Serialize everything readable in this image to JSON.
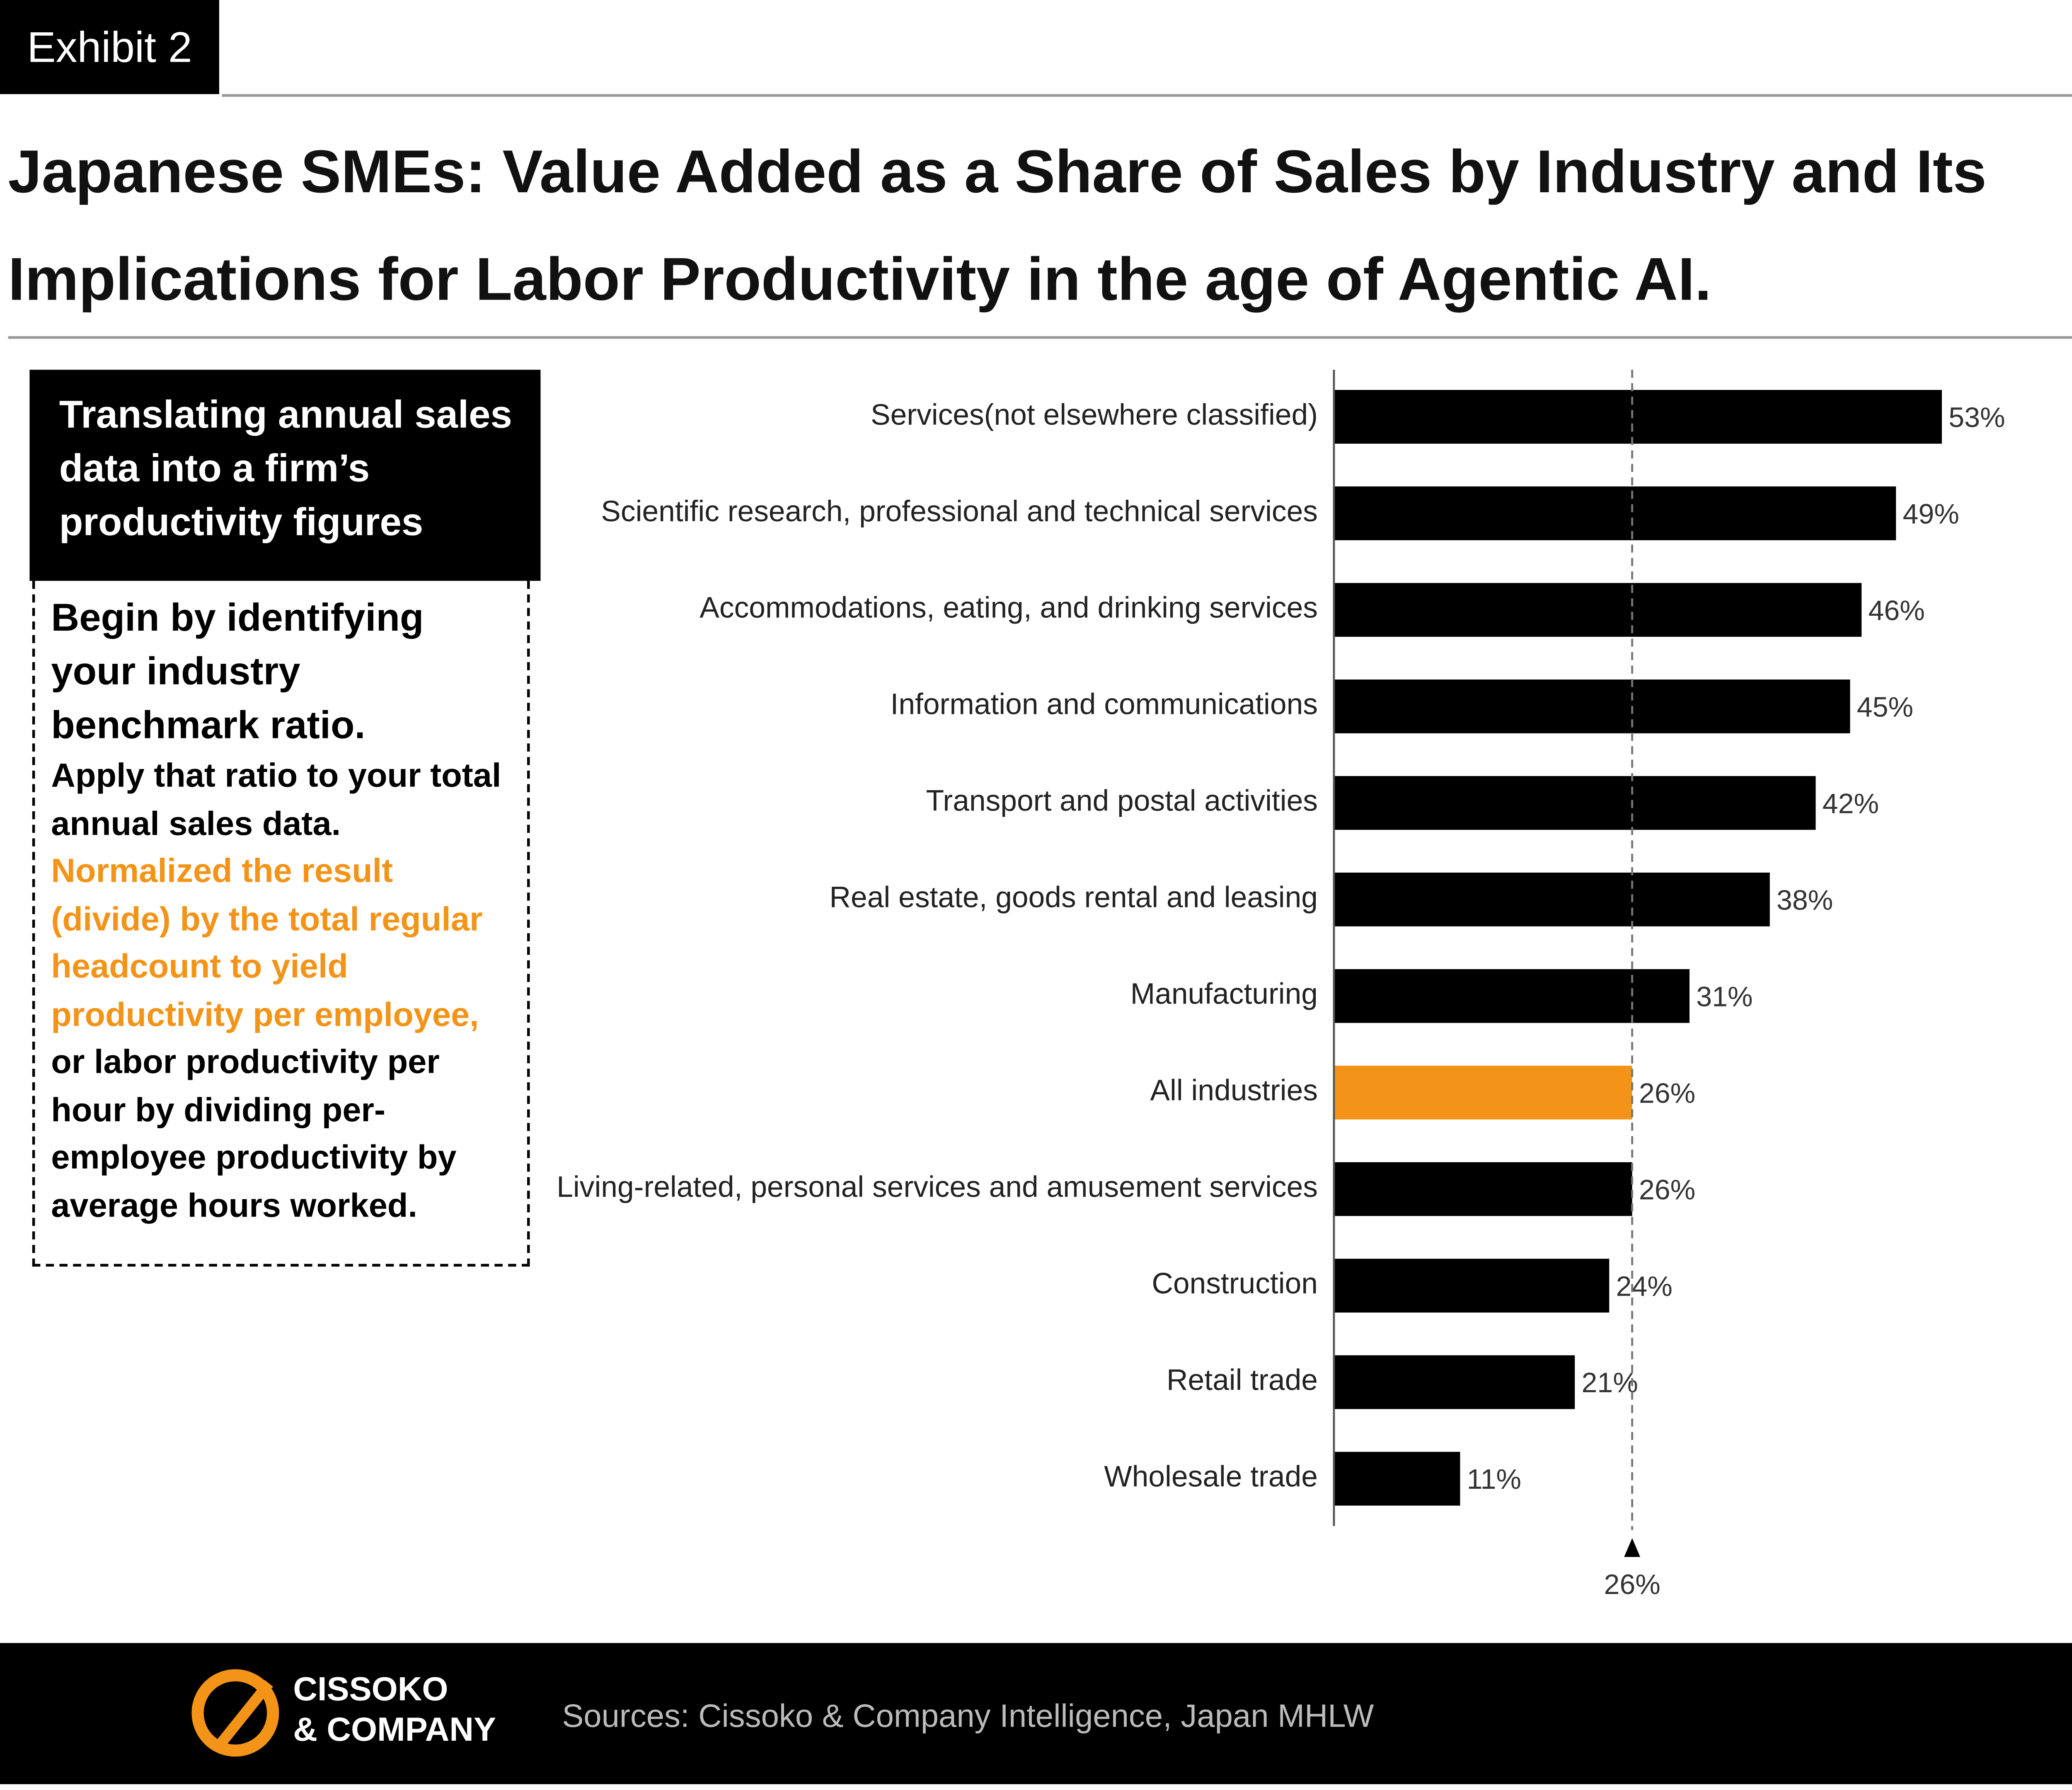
{
  "header": {
    "exhibit": "Exhibit 2",
    "title": "Japanese SMEs: Value Added as a Share of Sales by Industry and Its Implications for Labor Productivity in the age of Agentic AI."
  },
  "panel": {
    "heading": "Translating annual sales data into a firm’s productivity figures",
    "body": [
      "Begin by identifying your industry benchmark ratio.",
      "Apply that ratio to your total annual sales data.",
      "Normalized the result (divide) by the total regular headcount to yield productivity per employee,",
      "or labor productivity per hour by dividing per-employee productivity by average hours worked."
    ]
  },
  "chart_data": {
    "type": "bar",
    "orientation": "horizontal",
    "categories": [
      "Services(not elsewhere classified)",
      "Scientific research, professional and technical services",
      "Accommodations, eating, and drinking services",
      "Information and communications",
      "Transport and postal activities",
      "Real estate, goods rental and leasing",
      "Manufacturing",
      "All industries",
      "Living-related, personal services and amusement services",
      "Construction",
      "Retail trade",
      "Wholesale trade"
    ],
    "values": [
      53,
      49,
      46,
      45,
      42,
      38,
      31,
      26,
      26,
      24,
      21,
      11
    ],
    "value_labels": [
      "53%",
      "49%",
      "46%",
      "45%",
      "42%",
      "38%",
      "31%",
      "26%",
      "26%",
      "24%",
      "21%",
      "11%"
    ],
    "colors": [
      "#000000",
      "#000000",
      "#000000",
      "#000000",
      "#000000",
      "#000000",
      "#000000",
      "#f39419",
      "#000000",
      "#000000",
      "#000000",
      "#000000"
    ],
    "xlim": [
      0,
      66
    ],
    "reference_line": {
      "value": 26,
      "label": "26%"
    }
  },
  "footer": {
    "logo": [
      "CISSOKO",
      "& COMPANY"
    ],
    "sources": "Sources: Cissoko & Company Intelligence, Japan MHLW"
  }
}
